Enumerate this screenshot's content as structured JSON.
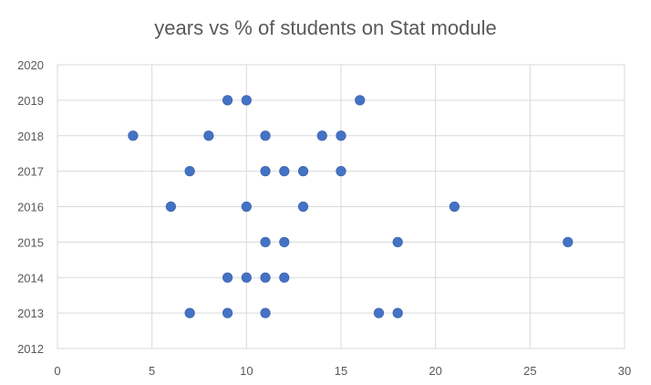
{
  "chart_data": {
    "type": "scatter",
    "title": "years vs % of students on Stat module",
    "xlabel": "",
    "ylabel": "",
    "xlim": [
      0,
      30
    ],
    "ylim": [
      2012,
      2020
    ],
    "xticks": [
      0,
      5,
      10,
      15,
      20,
      25,
      30
    ],
    "yticks": [
      2012,
      2013,
      2014,
      2015,
      2016,
      2017,
      2018,
      2019,
      2020
    ],
    "grid": true,
    "legend": "none",
    "marker_color": "#4472c4",
    "points": [
      {
        "x": 9,
        "y": 2019
      },
      {
        "x": 10,
        "y": 2019
      },
      {
        "x": 16,
        "y": 2019
      },
      {
        "x": 4,
        "y": 2018
      },
      {
        "x": 8,
        "y": 2018
      },
      {
        "x": 11,
        "y": 2018
      },
      {
        "x": 14,
        "y": 2018
      },
      {
        "x": 15,
        "y": 2018
      },
      {
        "x": 7,
        "y": 2017
      },
      {
        "x": 11,
        "y": 2017
      },
      {
        "x": 12,
        "y": 2017
      },
      {
        "x": 13,
        "y": 2017
      },
      {
        "x": 15,
        "y": 2017
      },
      {
        "x": 6,
        "y": 2016
      },
      {
        "x": 10,
        "y": 2016
      },
      {
        "x": 13,
        "y": 2016
      },
      {
        "x": 21,
        "y": 2016
      },
      {
        "x": 11,
        "y": 2015
      },
      {
        "x": 12,
        "y": 2015
      },
      {
        "x": 18,
        "y": 2015
      },
      {
        "x": 27,
        "y": 2015
      },
      {
        "x": 9,
        "y": 2014
      },
      {
        "x": 10,
        "y": 2014
      },
      {
        "x": 11,
        "y": 2014
      },
      {
        "x": 12,
        "y": 2014
      },
      {
        "x": 7,
        "y": 2013
      },
      {
        "x": 9,
        "y": 2013
      },
      {
        "x": 11,
        "y": 2013
      },
      {
        "x": 17,
        "y": 2013
      },
      {
        "x": 18,
        "y": 2013
      }
    ]
  }
}
